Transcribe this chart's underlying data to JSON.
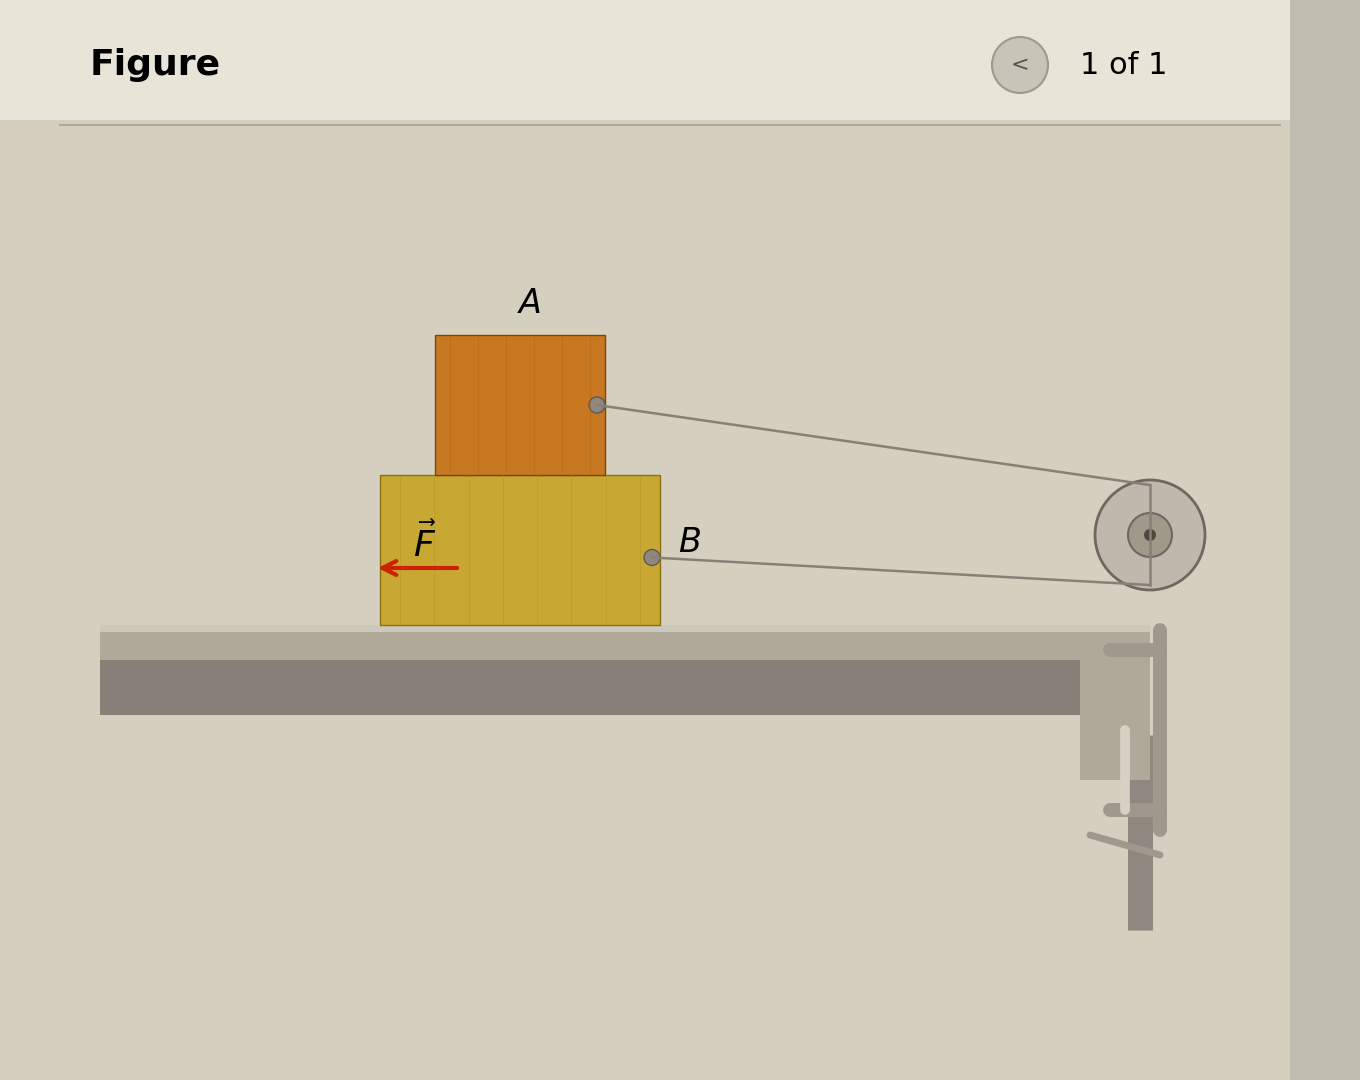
{
  "bg_color": "#d4cfbe",
  "header_bg": "#e8e4d8",
  "title_text": "Figure",
  "page_text": "1 of 1",
  "block_B_color": "#c8a832",
  "block_A_color": "#c87820",
  "table_top_color": "#b0a898",
  "table_shadow_color": "#888078",
  "pulley_color": "#a0988c",
  "rope_color": "#888078",
  "arrow_color": "#cc2200",
  "clamp_color": "#a0988c",
  "label_A": "A",
  "label_B": "B",
  "label_F": "$\\vec{F}$"
}
